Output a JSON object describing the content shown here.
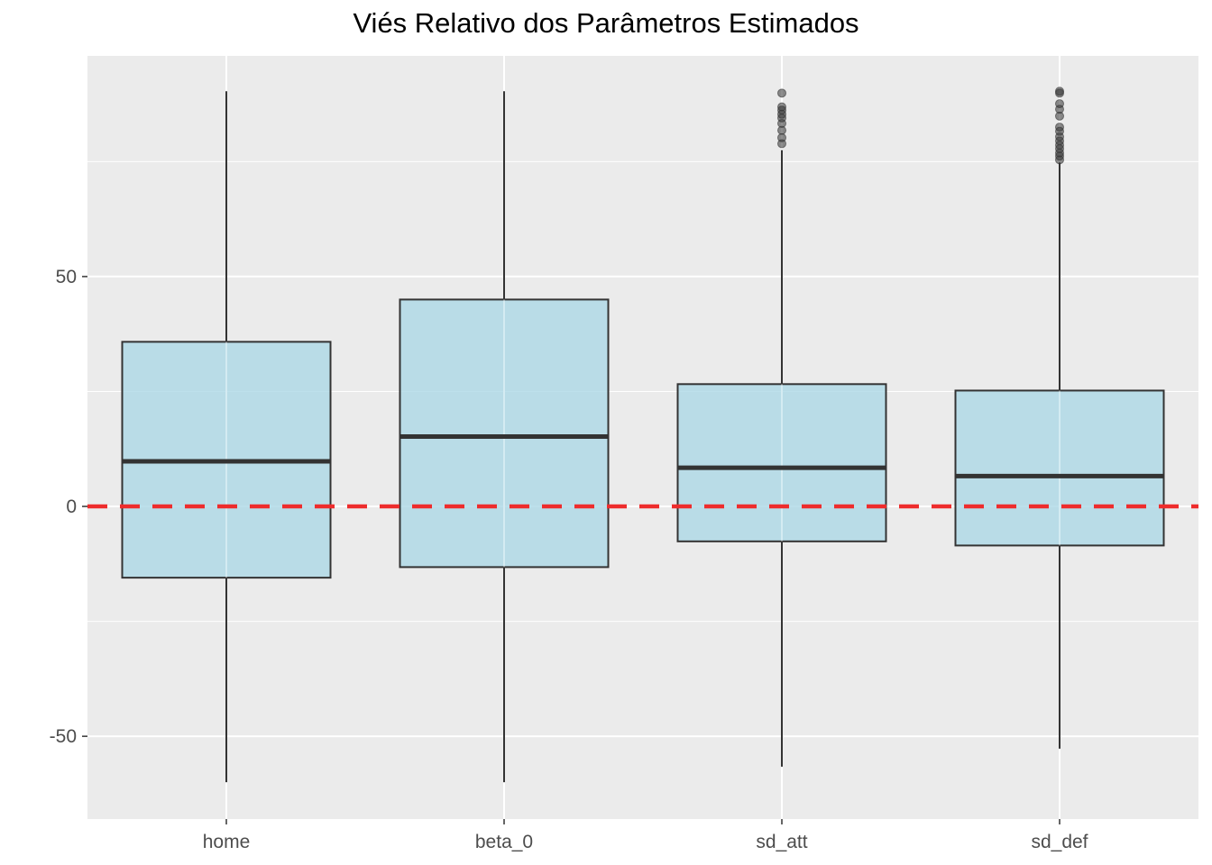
{
  "chart_data": {
    "type": "boxplot",
    "title": "Viés Relativo dos Parâmetros Estimados",
    "xlabel": "",
    "ylabel": "",
    "categories": [
      "home",
      "beta_0",
      "sd_att",
      "sd_def"
    ],
    "ylim": [
      -68,
      98
    ],
    "yticks": [
      -50,
      0,
      50
    ],
    "reference_line": {
      "y": 0,
      "style": "dashed",
      "color": "#ee2c2c"
    },
    "box_fill": "#add8e6",
    "panel_background": "#ebebeb",
    "grid": true,
    "boxes": [
      {
        "name": "home",
        "whisker_low": -60.0,
        "q1": -15.5,
        "median": 9.8,
        "q3": 35.8,
        "whisker_high": 90.3,
        "outliers": []
      },
      {
        "name": "beta_0",
        "whisker_low": -60.0,
        "q1": -13.2,
        "median": 15.2,
        "q3": 45.0,
        "whisker_high": 90.3,
        "outliers": []
      },
      {
        "name": "sd_att",
        "whisker_low": -56.6,
        "q1": -7.6,
        "median": 8.4,
        "q3": 26.6,
        "whisker_high": 77.5,
        "outliers": [
          78.9,
          80.2,
          81.8,
          83.3,
          84.5,
          85.3,
          86.2,
          86.9,
          89.9
        ]
      },
      {
        "name": "sd_def",
        "whisker_low": -52.7,
        "q1": -8.5,
        "median": 6.6,
        "q3": 25.2,
        "whisker_high": 74.8,
        "outliers": [
          75.4,
          76.2,
          76.9,
          77.8,
          78.6,
          79.5,
          80.4,
          81.6,
          82.5,
          84.9,
          86.4,
          87.6,
          89.9,
          90.3
        ]
      }
    ]
  }
}
